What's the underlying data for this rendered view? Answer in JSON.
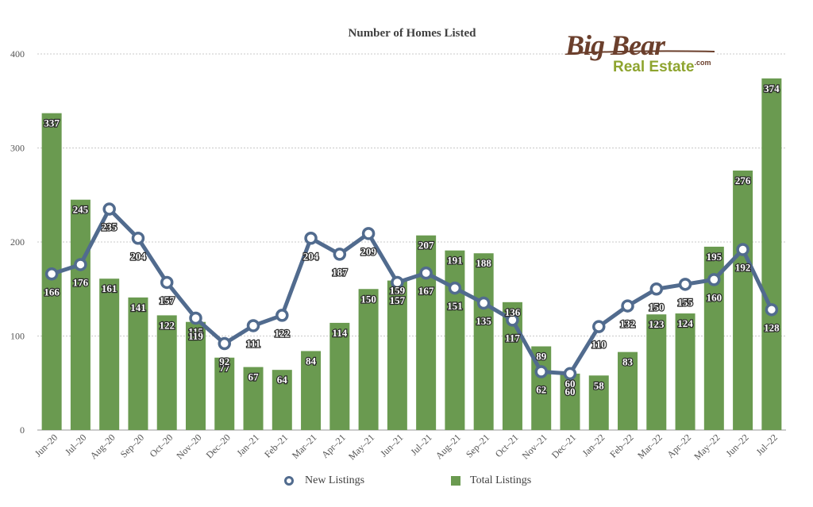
{
  "title": "Number of Homes Listed",
  "logo": {
    "big": "Big Bear",
    "sub": "Real Estate",
    "com": ".com"
  },
  "legend": {
    "new_listings": "New Listings",
    "total_listings": "Total Listings"
  },
  "colors": {
    "bars": "#6a9a50",
    "line": "#516b8e",
    "grid": "#c8c8c8",
    "axis_text": "#555555"
  },
  "chart_data": {
    "type": "bar",
    "title": "Number of Homes Listed",
    "xlabel": "",
    "ylabel": "",
    "ylim": [
      0,
      400
    ],
    "yticks": [
      0,
      100,
      200,
      300,
      400
    ],
    "grid": true,
    "legend_position": "bottom",
    "categories": [
      "Jun–20",
      "Jul–20",
      "Aug–20",
      "Sep–20",
      "Oct–20",
      "Nov–20",
      "Dec–20",
      "Jan–21",
      "Feb–21",
      "Mar–21",
      "Apr–21",
      "May–21",
      "Jun–21",
      "Jul–21",
      "Aug–21",
      "Sep–21",
      "Oct–21",
      "Nov–21",
      "Dec–21",
      "Jan–22",
      "Feb–22",
      "Mar–22",
      "Apr–22",
      "May–22",
      "Jun–22",
      "Jul–22"
    ],
    "series": [
      {
        "name": "Total Listings",
        "type": "bar",
        "values": [
          337,
          245,
          161,
          141,
          122,
          115,
          77,
          67,
          64,
          84,
          114,
          150,
          159,
          207,
          191,
          188,
          136,
          89,
          60,
          58,
          83,
          123,
          124,
          195,
          276,
          374
        ]
      },
      {
        "name": "New Listings",
        "type": "line",
        "values": [
          166,
          176,
          235,
          204,
          157,
          119,
          92,
          111,
          122,
          204,
          187,
          209,
          157,
          167,
          151,
          135,
          117,
          62,
          60,
          110,
          132,
          150,
          155,
          160,
          192,
          128
        ]
      }
    ]
  }
}
